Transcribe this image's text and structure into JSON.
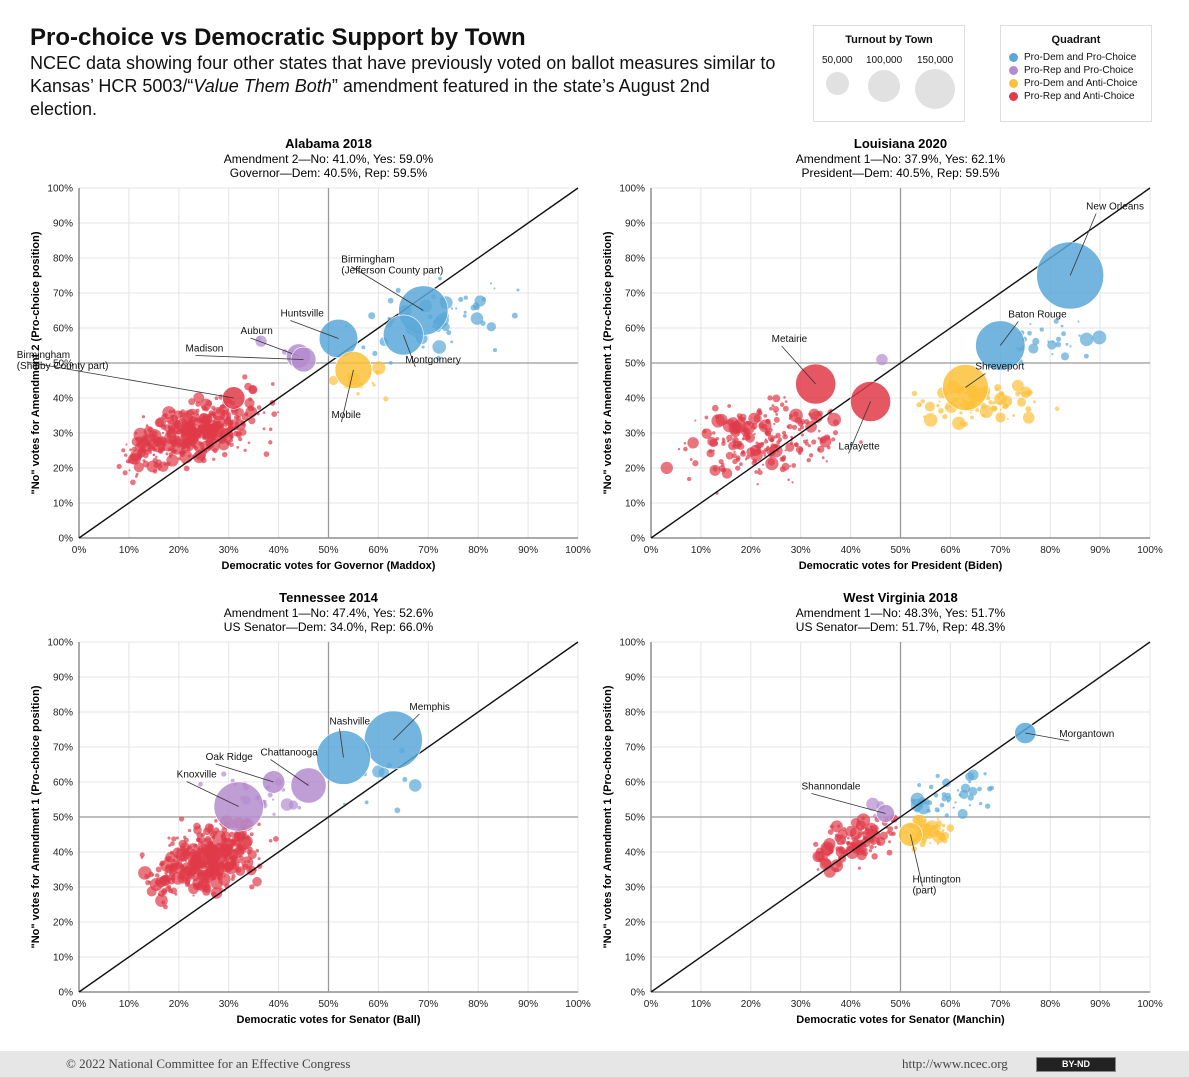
{
  "title": "Pro-choice vs Democratic Support by Town",
  "subtitle_parts": {
    "before": "NCEC data showing four other states that have previously voted on ballot measures similar to Kansas’ HCR 5003/“",
    "emph": "Value Them Both",
    "after": "” amendment featured in the state’s August 2nd election."
  },
  "legend": {
    "turnout_title": "Turnout by Town",
    "turnout_sizes": [
      {
        "label": "50,000",
        "value": 50000
      },
      {
        "label": "100,000",
        "value": 100000
      },
      {
        "label": "150,000",
        "value": 150000
      }
    ],
    "quadrant_title": "Quadrant",
    "quadrants": [
      {
        "label": "Pro-Dem and Pro-Choice",
        "color": "#5aa8d8"
      },
      {
        "label": "Pro-Rep and Pro-Choice",
        "color": "#b48cce"
      },
      {
        "label": "Pro-Dem and Anti-Choice",
        "color": "#fcc13a"
      },
      {
        "label": "Pro-Rep and Anti-Choice",
        "color": "#e03b48"
      }
    ]
  },
  "chart_data": [
    {
      "type": "scatter",
      "title": "Alabama 2018",
      "subtitle1": "Amendment 2—No: 41.0%, Yes: 59.0%",
      "subtitle2": "Governor—Dem: 40.5%, Rep: 59.5%",
      "xlabel": "Democratic votes for Governor (Maddox)",
      "ylabel": "\"No\" votes for Amendment 2 (Pro-choice position)",
      "xlim": [
        0,
        100
      ],
      "ylim": [
        0,
        100
      ],
      "x_ticks": [
        "0%",
        "10%",
        "20%",
        "30%",
        "40%",
        "50%",
        "60%",
        "70%",
        "80%",
        "90%",
        "100%"
      ],
      "y_ticks": [
        "0%",
        "10%",
        "20%",
        "30%",
        "40%",
        "50%",
        "60%",
        "70%",
        "80%",
        "90%",
        "100%"
      ],
      "labeled_points": [
        {
          "label": "Birmingham (Jefferson County part)",
          "x": 69,
          "y": 65,
          "turnout": 90000
        },
        {
          "label": "Huntsville",
          "x": 52,
          "y": 57,
          "turnout": 50000
        },
        {
          "label": "Auburn",
          "x": 44,
          "y": 52,
          "turnout": 15000
        },
        {
          "label": "Madison",
          "x": 45,
          "y": 51,
          "turnout": 16000
        },
        {
          "label": "Birmingham (Shelby County part)",
          "x": 31,
          "y": 40,
          "turnout": 12000
        },
        {
          "label": "Montgomery",
          "x": 65,
          "y": 58,
          "turnout": 55000
        },
        {
          "label": "Mobile",
          "x": 55,
          "y": 48,
          "turnout": 45000
        }
      ],
      "quadrant_counts": {
        "pro_dem_pro_choice": 60,
        "pro_rep_pro_choice": 4,
        "pro_dem_anti_choice": 14,
        "pro_rep_anti_choice": 420
      }
    },
    {
      "type": "scatter",
      "title": "Louisiana 2020",
      "subtitle1": "Amendment 1—No: 37.9%, Yes: 62.1%",
      "subtitle2": "President—Dem: 40.5%, Rep: 59.5%",
      "xlabel": "Democratic votes for President (Biden)",
      "ylabel": "\"No\" votes for Amendment 1 (Pro-choice position)",
      "xlim": [
        0,
        100
      ],
      "ylim": [
        0,
        100
      ],
      "x_ticks": [
        "0%",
        "10%",
        "20%",
        "30%",
        "40%",
        "50%",
        "60%",
        "70%",
        "80%",
        "90%",
        "100%"
      ],
      "y_ticks": [
        "0%",
        "10%",
        "20%",
        "30%",
        "40%",
        "50%",
        "60%",
        "70%",
        "80%",
        "90%",
        "100%"
      ],
      "labeled_points": [
        {
          "label": "New Orleans",
          "x": 84,
          "y": 75,
          "turnout": 180000
        },
        {
          "label": "Baton Rouge",
          "x": 70,
          "y": 55,
          "turnout": 90000
        },
        {
          "label": "Metairie",
          "x": 33,
          "y": 44,
          "turnout": 55000
        },
        {
          "label": "Shreveport",
          "x": 63,
          "y": 43,
          "turnout": 75000
        },
        {
          "label": "Lafayette",
          "x": 44,
          "y": 39,
          "turnout": 55000
        }
      ],
      "quadrant_counts": {
        "pro_dem_pro_choice": 28,
        "pro_rep_pro_choice": 1,
        "pro_dem_anti_choice": 90,
        "pro_rep_anti_choice": 230
      }
    },
    {
      "type": "scatter",
      "title": "Tennessee 2014",
      "subtitle1": "Amendment 1—No: 47.4%, Yes: 52.6%",
      "subtitle2": "US Senator—Dem: 34.0%, Rep: 66.0%",
      "xlabel": "Democratic votes for Senator (Ball)",
      "ylabel": "\"No\" votes for Amendment 1 (Pro-choice position)",
      "xlim": [
        0,
        100
      ],
      "ylim": [
        0,
        100
      ],
      "x_ticks": [
        "0%",
        "10%",
        "20%",
        "30%",
        "40%",
        "50%",
        "60%",
        "70%",
        "80%",
        "90%",
        "100%"
      ],
      "y_ticks": [
        "0%",
        "10%",
        "20%",
        "30%",
        "40%",
        "50%",
        "60%",
        "70%",
        "80%",
        "90%",
        "100%"
      ],
      "labeled_points": [
        {
          "label": "Memphis",
          "x": 63,
          "y": 72,
          "turnout": 130000
        },
        {
          "label": "Nashville",
          "x": 53,
          "y": 67,
          "turnout": 110000
        },
        {
          "label": "Oak Ridge",
          "x": 39,
          "y": 60,
          "turnout": 12000
        },
        {
          "label": "Chattanooga",
          "x": 46,
          "y": 59,
          "turnout": 40000
        },
        {
          "label": "Knoxville",
          "x": 32,
          "y": 53,
          "turnout": 90000
        }
      ],
      "quadrant_counts": {
        "pro_dem_pro_choice": 10,
        "pro_rep_pro_choice": 28,
        "pro_dem_anti_choice": 0,
        "pro_rep_anti_choice": 430
      }
    },
    {
      "type": "scatter",
      "title": "West Virginia 2018",
      "subtitle1": "Amendment 1—No: 48.3%, Yes: 51.7%",
      "subtitle2": "US Senator—Dem: 51.7%, Rep: 48.3%",
      "xlabel": "Democratic votes for Senator (Manchin)",
      "ylabel": "\"No\" votes for Amendment 1 (Pro-choice position)",
      "xlim": [
        0,
        100
      ],
      "ylim": [
        0,
        100
      ],
      "x_ticks": [
        "0%",
        "10%",
        "20%",
        "30%",
        "40%",
        "50%",
        "60%",
        "70%",
        "80%",
        "90%",
        "100%"
      ],
      "y_ticks": [
        "0%",
        "10%",
        "20%",
        "30%",
        "40%",
        "50%",
        "60%",
        "70%",
        "80%",
        "90%",
        "100%"
      ],
      "labeled_points": [
        {
          "label": "Morgantown",
          "x": 75,
          "y": 74,
          "turnout": 10000
        },
        {
          "label": "Shannondale",
          "x": 47,
          "y": 51,
          "turnout": 6000
        },
        {
          "label": "Huntington (part)",
          "x": 52,
          "y": 45,
          "turnout": 14000
        }
      ],
      "quadrant_counts": {
        "pro_dem_pro_choice": 45,
        "pro_rep_pro_choice": 3,
        "pro_dem_anti_choice": 60,
        "pro_rep_anti_choice": 120
      }
    }
  ],
  "footer": {
    "copyright": "© 2022 National Committee for an Effective Congress",
    "url": "http://www.ncec.org",
    "license": "BY-ND"
  }
}
